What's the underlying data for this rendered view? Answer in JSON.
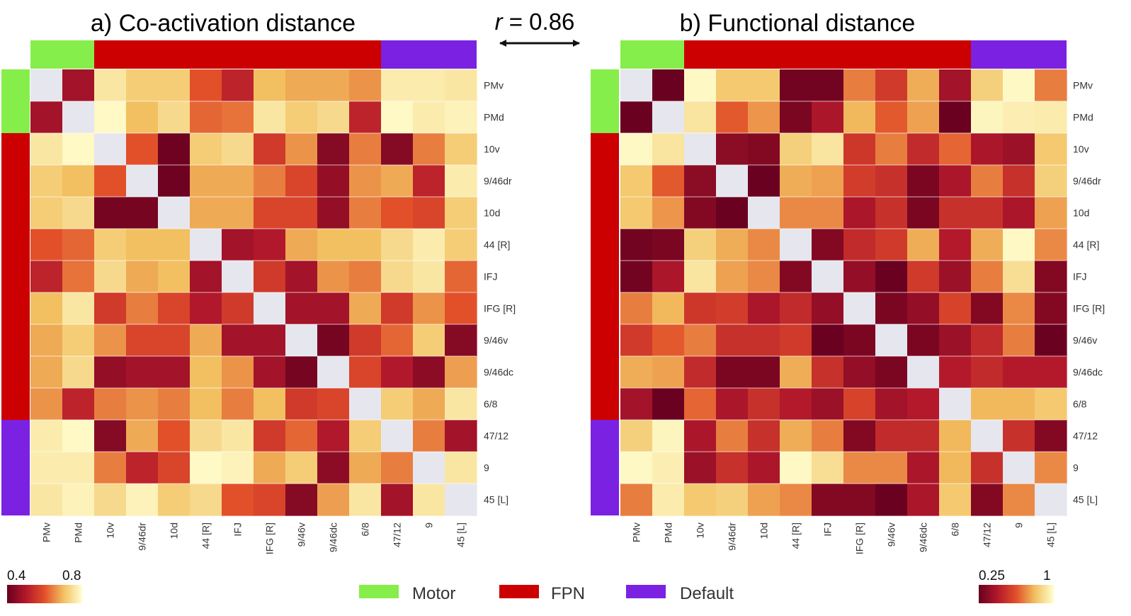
{
  "figure": {
    "correlation_label_italic": "r",
    "correlation_label_rest": " = 0.86"
  },
  "colors": {
    "diagonal": "#e6e6ef",
    "motor": "#86ee4a",
    "fpn": "#cc0000",
    "default": "#7b22e2",
    "scale_low": "#67001f",
    "scale_mid": "#e2502a",
    "scale_high": "#ffffd0"
  },
  "legend": {
    "items": [
      {
        "label": "Motor",
        "color": "#86ee4a"
      },
      {
        "label": "FPN",
        "color": "#cc0000"
      },
      {
        "label": "Default",
        "color": "#7b22e2"
      }
    ]
  },
  "chart_data": [
    {
      "type": "heatmap",
      "title": "a) Co-activation distance",
      "labels": [
        "PMv",
        "PMd",
        "10v",
        "9/46dr",
        "10d",
        "44 [R]",
        "IFJ",
        "IFG [R]",
        "9/46v",
        "9/46dc",
        "6/8",
        "47/12",
        "9",
        "45 [L]"
      ],
      "groups": [
        "Motor",
        "Motor",
        "FPN",
        "FPN",
        "FPN",
        "FPN",
        "FPN",
        "FPN",
        "FPN",
        "FPN",
        "FPN",
        "Default",
        "Default",
        "Default"
      ],
      "colorbar": {
        "min": 0.4,
        "max": 0.8,
        "min_label": "0.4",
        "max_label": "0.8"
      },
      "values": [
        [
          null,
          0.48,
          0.76,
          0.72,
          0.72,
          0.6,
          0.52,
          0.7,
          0.68,
          0.68,
          0.66,
          0.77,
          0.77,
          0.76
        ],
        [
          0.48,
          null,
          0.79,
          0.7,
          0.74,
          0.62,
          0.63,
          0.76,
          0.72,
          0.74,
          0.52,
          0.79,
          0.77,
          0.78
        ],
        [
          0.76,
          0.79,
          null,
          0.6,
          0.41,
          0.72,
          0.74,
          0.56,
          0.66,
          0.44,
          0.64,
          0.44,
          0.64,
          0.72
        ],
        [
          0.72,
          0.7,
          0.6,
          null,
          0.41,
          0.68,
          0.68,
          0.64,
          0.58,
          0.46,
          0.66,
          0.68,
          0.52,
          0.77
        ],
        [
          0.72,
          0.74,
          0.42,
          0.42,
          null,
          0.68,
          0.68,
          0.58,
          0.58,
          0.46,
          0.64,
          0.6,
          0.58,
          0.72
        ],
        [
          0.6,
          0.62,
          0.72,
          0.7,
          0.7,
          null,
          0.48,
          0.5,
          0.68,
          0.7,
          0.7,
          0.74,
          0.77,
          0.72
        ],
        [
          0.52,
          0.63,
          0.74,
          0.68,
          0.7,
          0.48,
          null,
          0.56,
          0.48,
          0.66,
          0.64,
          0.74,
          0.76,
          0.62
        ],
        [
          0.7,
          0.76,
          0.56,
          0.64,
          0.58,
          0.5,
          0.56,
          null,
          0.48,
          0.48,
          0.68,
          0.56,
          0.66,
          0.6
        ],
        [
          0.68,
          0.72,
          0.66,
          0.58,
          0.58,
          0.68,
          0.48,
          0.48,
          null,
          0.42,
          0.56,
          0.62,
          0.72,
          0.44
        ],
        [
          0.68,
          0.74,
          0.46,
          0.48,
          0.48,
          0.7,
          0.66,
          0.48,
          0.42,
          null,
          0.58,
          0.5,
          0.45,
          0.67
        ],
        [
          0.66,
          0.52,
          0.64,
          0.66,
          0.64,
          0.7,
          0.64,
          0.7,
          0.56,
          0.58,
          null,
          0.72,
          0.68,
          0.76
        ],
        [
          0.77,
          0.79,
          0.44,
          0.68,
          0.6,
          0.74,
          0.76,
          0.56,
          0.62,
          0.5,
          0.72,
          null,
          0.64,
          0.48
        ],
        [
          0.77,
          0.77,
          0.64,
          0.52,
          0.58,
          0.79,
          0.78,
          0.68,
          0.72,
          0.45,
          0.68,
          0.64,
          null,
          0.76
        ],
        [
          0.76,
          0.78,
          0.74,
          0.78,
          0.72,
          0.74,
          0.6,
          0.58,
          0.44,
          0.67,
          0.76,
          0.48,
          0.76,
          null
        ]
      ]
    },
    {
      "type": "heatmap",
      "title": "b) Functional distance",
      "labels": [
        "PMv",
        "PMd",
        "10v",
        "9/46dr",
        "10d",
        "44 [R]",
        "IFJ",
        "IFG [R]",
        "9/46v",
        "9/46dc",
        "6/8",
        "47/12",
        "9",
        "45 [L]"
      ],
      "groups": [
        "Motor",
        "Motor",
        "FPN",
        "FPN",
        "FPN",
        "FPN",
        "FPN",
        "FPN",
        "FPN",
        "FPN",
        "FPN",
        "Default",
        "Default",
        "Default"
      ],
      "colorbar": {
        "min": 0.25,
        "max": 1,
        "min_label": "0.25",
        "max_label": "1"
      },
      "values": [
        [
          null,
          0.26,
          0.98,
          0.84,
          0.84,
          0.28,
          0.28,
          0.7,
          0.55,
          0.78,
          0.4,
          0.86,
          0.98,
          0.7
        ],
        [
          0.26,
          null,
          0.92,
          0.64,
          0.74,
          0.3,
          0.42,
          0.8,
          0.64,
          0.76,
          0.26,
          0.97,
          0.95,
          0.94
        ],
        [
          0.98,
          0.92,
          null,
          0.34,
          0.32,
          0.86,
          0.92,
          0.54,
          0.7,
          0.5,
          0.66,
          0.42,
          0.38,
          0.84
        ],
        [
          0.84,
          0.64,
          0.34,
          null,
          0.26,
          0.78,
          0.76,
          0.56,
          0.52,
          0.3,
          0.42,
          0.7,
          0.52,
          0.86
        ],
        [
          0.84,
          0.74,
          0.32,
          0.26,
          null,
          0.72,
          0.72,
          0.42,
          0.52,
          0.3,
          0.52,
          0.52,
          0.42,
          0.76
        ],
        [
          0.28,
          0.3,
          0.86,
          0.78,
          0.72,
          null,
          0.32,
          0.5,
          0.55,
          0.78,
          0.44,
          0.78,
          0.98,
          0.72
        ],
        [
          0.28,
          0.42,
          0.92,
          0.76,
          0.72,
          0.32,
          null,
          0.36,
          0.26,
          0.55,
          0.38,
          0.7,
          0.9,
          0.32
        ],
        [
          0.7,
          0.8,
          0.54,
          0.56,
          0.42,
          0.5,
          0.36,
          null,
          0.3,
          0.36,
          0.58,
          0.32,
          0.72,
          0.32
        ],
        [
          0.55,
          0.64,
          0.7,
          0.52,
          0.52,
          0.55,
          0.26,
          0.3,
          null,
          0.3,
          0.38,
          0.5,
          0.7,
          0.26
        ],
        [
          0.78,
          0.76,
          0.5,
          0.3,
          0.3,
          0.78,
          0.52,
          0.36,
          0.3,
          null,
          0.44,
          0.5,
          0.44,
          0.44
        ],
        [
          0.4,
          0.26,
          0.66,
          0.42,
          0.52,
          0.44,
          0.38,
          0.58,
          0.4,
          0.44,
          null,
          0.8,
          0.8,
          0.84
        ],
        [
          0.86,
          0.97,
          0.42,
          0.7,
          0.52,
          0.78,
          0.7,
          0.32,
          0.5,
          0.5,
          0.8,
          null,
          0.52,
          0.32
        ],
        [
          0.98,
          0.95,
          0.38,
          0.52,
          0.42,
          0.98,
          0.9,
          0.72,
          0.72,
          0.42,
          0.8,
          0.52,
          null,
          0.72
        ],
        [
          0.7,
          0.94,
          0.84,
          0.86,
          0.76,
          0.72,
          0.32,
          0.32,
          0.26,
          0.42,
          0.84,
          0.32,
          0.72,
          null
        ]
      ]
    }
  ]
}
